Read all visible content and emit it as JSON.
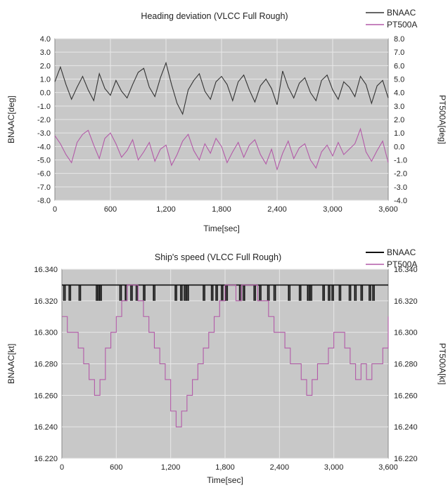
{
  "chart_data": [
    {
      "type": "line",
      "title": "Heading deviation (VLCC Full Rough)",
      "xlabel": "Time[sec]",
      "ylabel": "BNAAC[deg]",
      "y2label": "PT500A[deg]",
      "xlim": [
        0,
        3600
      ],
      "ylim": [
        -8,
        4
      ],
      "y2lim": [
        -4,
        8
      ],
      "xticks": [
        "0",
        "600",
        "1,200",
        "1,800",
        "2,400",
        "3,000",
        "3,600"
      ],
      "yticks": [
        "4.0",
        "3.0",
        "2.0",
        "1.0",
        "0.0",
        "-1.0",
        "-2.0",
        "-3.0",
        "-4.0",
        "-5.0",
        "-6.0",
        "-7.0",
        "-8.0"
      ],
      "y2ticks": [
        "8.0",
        "7.0",
        "6.0",
        "5.0",
        "4.0",
        "3.0",
        "2.0",
        "1.0",
        "0.0",
        "-1.0",
        "-2.0",
        "-3.0",
        "-4.0"
      ],
      "grid": true,
      "legend": "top-right",
      "series": [
        {
          "name": "BNAAC",
          "color": "#333333",
          "axis": "left",
          "x": [
            0,
            60,
            120,
            180,
            240,
            300,
            360,
            420,
            480,
            540,
            600,
            660,
            720,
            780,
            840,
            900,
            960,
            1020,
            1080,
            1140,
            1200,
            1260,
            1320,
            1380,
            1440,
            1500,
            1560,
            1620,
            1680,
            1740,
            1800,
            1860,
            1920,
            1980,
            2040,
            2100,
            2160,
            2220,
            2280,
            2340,
            2400,
            2460,
            2520,
            2580,
            2640,
            2700,
            2760,
            2820,
            2880,
            2940,
            3000,
            3060,
            3120,
            3180,
            3240,
            3300,
            3360,
            3420,
            3480,
            3540,
            3600
          ],
          "values": [
            0.8,
            1.9,
            0.6,
            -0.5,
            0.4,
            1.2,
            0.2,
            -0.6,
            1.4,
            0.3,
            -0.2,
            0.9,
            0.1,
            -0.4,
            0.6,
            1.5,
            1.8,
            0.4,
            -0.3,
            1.1,
            2.2,
            0.6,
            -0.8,
            -1.6,
            0.2,
            0.9,
            1.4,
            0.1,
            -0.5,
            0.8,
            1.2,
            0.6,
            -0.6,
            0.8,
            1.3,
            0.2,
            -0.7,
            0.5,
            1.0,
            0.3,
            -0.9,
            1.6,
            0.4,
            -0.4,
            0.7,
            1.1,
            0.0,
            -0.6,
            0.9,
            1.3,
            0.2,
            -0.5,
            0.8,
            0.4,
            -0.3,
            1.2,
            0.6,
            -0.8,
            0.5,
            0.9,
            -0.4
          ]
        },
        {
          "name": "PT500A",
          "color": "#b35aa8",
          "axis": "right",
          "x": [
            0,
            60,
            120,
            180,
            240,
            300,
            360,
            420,
            480,
            540,
            600,
            660,
            720,
            780,
            840,
            900,
            960,
            1020,
            1080,
            1140,
            1200,
            1260,
            1320,
            1380,
            1440,
            1500,
            1560,
            1620,
            1680,
            1740,
            1800,
            1860,
            1920,
            1980,
            2040,
            2100,
            2160,
            2220,
            2280,
            2340,
            2400,
            2460,
            2520,
            2580,
            2640,
            2700,
            2760,
            2820,
            2880,
            2940,
            3000,
            3060,
            3120,
            3180,
            3240,
            3300,
            3360,
            3420,
            3480,
            3540,
            3600
          ],
          "values": [
            0.8,
            0.2,
            -0.6,
            -1.2,
            0.3,
            0.9,
            1.2,
            0.1,
            -0.9,
            0.6,
            1.0,
            0.2,
            -0.8,
            -0.3,
            0.5,
            -1.0,
            -0.4,
            0.3,
            -1.1,
            -0.2,
            0.1,
            -1.4,
            -0.6,
            0.4,
            0.9,
            -0.3,
            -1.0,
            0.2,
            -0.5,
            0.6,
            0.0,
            -1.2,
            -0.4,
            0.3,
            -0.8,
            0.1,
            0.5,
            -0.6,
            -1.3,
            -0.2,
            -1.7,
            -0.5,
            0.4,
            -0.9,
            -0.1,
            0.2,
            -1.0,
            -1.6,
            -0.4,
            0.1,
            -0.7,
            0.3,
            -0.6,
            -0.2,
            0.2,
            1.3,
            -0.4,
            -1.1,
            -0.3,
            0.4,
            -1.2
          ]
        }
      ]
    },
    {
      "type": "line",
      "title": "Ship's speed (VLCC Full Rough)",
      "xlabel": "Time[sec]",
      "ylabel": "BNAAC[kt]",
      "y2label": "PT500A[kt]",
      "xlim": [
        0,
        3600
      ],
      "ylim": [
        16.22,
        16.34
      ],
      "y2lim": [
        16.22,
        16.34
      ],
      "xticks": [
        "0",
        "600",
        "1,200",
        "1,800",
        "2,400",
        "3,000",
        "3,600"
      ],
      "yticks": [
        "16.340",
        "16.320",
        "16.300",
        "16.280",
        "16.260",
        "16.240",
        "16.220"
      ],
      "y2ticks": [
        "16.340",
        "16.320",
        "16.300",
        "16.280",
        "16.260",
        "16.240",
        "16.220"
      ],
      "grid": true,
      "legend": "top-right",
      "series": [
        {
          "name": "BNAAC",
          "color": "#111111",
          "axis": "left",
          "step": true,
          "x": [
            0,
            3600
          ],
          "values": [
            16.33,
            16.33
          ],
          "dips": [
            20,
            80,
            190,
            380,
            400,
            420,
            640,
            700,
            760,
            820,
            900,
            1010,
            1250,
            1310,
            1350,
            1380,
            1560,
            1650,
            1700,
            1760,
            1810,
            1960,
            2000,
            2120,
            2180,
            2270,
            2340,
            2500,
            2620,
            2710,
            2740,
            2880,
            2940,
            2980,
            3060,
            3170,
            3230,
            3300,
            3390,
            3430
          ],
          "dip_value": 16.32
        },
        {
          "name": "PT500A",
          "color": "#b35aa8",
          "axis": "right",
          "step": true,
          "x": [
            0,
            60,
            120,
            180,
            240,
            300,
            360,
            420,
            480,
            540,
            600,
            660,
            720,
            780,
            840,
            900,
            960,
            1020,
            1080,
            1140,
            1200,
            1260,
            1320,
            1380,
            1440,
            1500,
            1560,
            1620,
            1680,
            1740,
            1800,
            1860,
            1920,
            1980,
            2040,
            2100,
            2160,
            2220,
            2280,
            2340,
            2400,
            2460,
            2520,
            2580,
            2640,
            2700,
            2760,
            2820,
            2880,
            2940,
            3000,
            3060,
            3120,
            3180,
            3240,
            3300,
            3360,
            3420,
            3480,
            3540,
            3600
          ],
          "values": [
            16.31,
            16.3,
            16.3,
            16.29,
            16.28,
            16.27,
            16.26,
            16.27,
            16.29,
            16.3,
            16.31,
            16.32,
            16.33,
            16.33,
            16.32,
            16.31,
            16.3,
            16.29,
            16.28,
            16.27,
            16.25,
            16.24,
            16.25,
            16.26,
            16.27,
            16.28,
            16.29,
            16.3,
            16.31,
            16.32,
            16.33,
            16.33,
            16.32,
            16.33,
            16.33,
            16.33,
            16.32,
            16.32,
            16.31,
            16.3,
            16.3,
            16.29,
            16.28,
            16.28,
            16.27,
            16.26,
            16.27,
            16.28,
            16.28,
            16.29,
            16.3,
            16.3,
            16.29,
            16.28,
            16.27,
            16.28,
            16.27,
            16.28,
            16.28,
            16.29,
            16.31
          ]
        }
      ]
    }
  ]
}
